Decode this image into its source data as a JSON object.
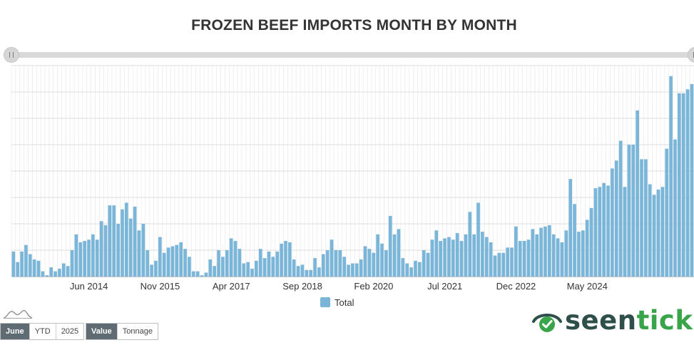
{
  "chart_data": {
    "type": "bar",
    "title": "FROZEN BEEF IMPORTS MONTH BY MONTH",
    "x_tick_labels": [
      "Jun 2014",
      "Nov 2015",
      "Apr 2017",
      "Sep 2018",
      "Feb 2020",
      "Jul 2021",
      "Dec 2022",
      "May 2024"
    ],
    "x_start": "Dec 2012",
    "x_end": "Jun 2025",
    "ylim": [
      0,
      8
    ],
    "y_tick_labels_visible": false,
    "grid": true,
    "legend": {
      "placement": "bottom-center",
      "entries": [
        "Total"
      ]
    },
    "series": [
      {
        "name": "Total",
        "color": "#7ab6d9",
        "values": [
          0.95,
          0.55,
          0.95,
          1.2,
          0.85,
          0.65,
          0.6,
          0.2,
          0.05,
          0.35,
          0.2,
          0.3,
          0.5,
          0.4,
          1.0,
          1.6,
          1.3,
          1.35,
          1.4,
          1.6,
          1.4,
          2.1,
          1.95,
          2.7,
          2.7,
          2.0,
          2.55,
          2.8,
          2.2,
          2.65,
          1.75,
          2.0,
          1.0,
          0.45,
          0.6,
          1.5,
          0.9,
          1.1,
          1.15,
          1.2,
          1.3,
          1.05,
          0.75,
          0.2,
          0.2,
          0.05,
          0.15,
          0.65,
          0.4,
          1.0,
          0.75,
          1.0,
          1.45,
          1.35,
          1.05,
          0.5,
          0.55,
          0.3,
          0.6,
          1.05,
          0.7,
          0.95,
          0.75,
          0.95,
          1.25,
          1.35,
          1.3,
          0.65,
          0.4,
          0.45,
          0.25,
          0.25,
          0.7,
          0.35,
          0.85,
          1.0,
          1.4,
          1.0,
          1.0,
          0.75,
          0.45,
          0.5,
          0.5,
          0.65,
          1.15,
          1.05,
          0.9,
          1.6,
          1.25,
          1.0,
          2.3,
          1.6,
          1.8,
          0.7,
          0.5,
          0.35,
          0.6,
          0.55,
          1.0,
          0.9,
          1.4,
          1.75,
          1.35,
          1.45,
          1.5,
          1.4,
          1.65,
          1.35,
          1.6,
          2.45,
          1.6,
          2.8,
          1.7,
          1.5,
          1.3,
          0.8,
          0.9,
          0.9,
          1.1,
          1.1,
          1.9,
          1.35,
          1.35,
          1.4,
          1.8,
          1.6,
          1.85,
          1.9,
          1.95,
          1.6,
          1.45,
          1.3,
          1.75,
          3.7,
          2.75,
          1.7,
          1.75,
          2.15,
          2.6,
          3.35,
          3.4,
          3.55,
          3.45,
          4.1,
          4.4,
          5.15,
          3.4,
          5.0,
          5.0,
          6.3,
          4.45,
          4.45,
          3.5,
          3.1,
          3.3,
          3.4,
          4.85,
          7.6,
          5.2,
          6.95,
          6.95,
          7.1,
          7.3
        ]
      }
    ]
  },
  "controls": {
    "period_buttons": [
      {
        "label": "June",
        "active": true
      },
      {
        "label": "YTD",
        "active": false
      },
      {
        "label": "2025",
        "active": false
      }
    ],
    "metric_buttons": [
      {
        "label": "Value",
        "active": true
      },
      {
        "label": "Tonnage",
        "active": false
      }
    ]
  },
  "icons": {
    "mini_chart": "mini-area-chart-icon",
    "logo_mark": "eye-check-icon"
  },
  "logo": {
    "part1": "seen",
    "part2": "tick"
  }
}
